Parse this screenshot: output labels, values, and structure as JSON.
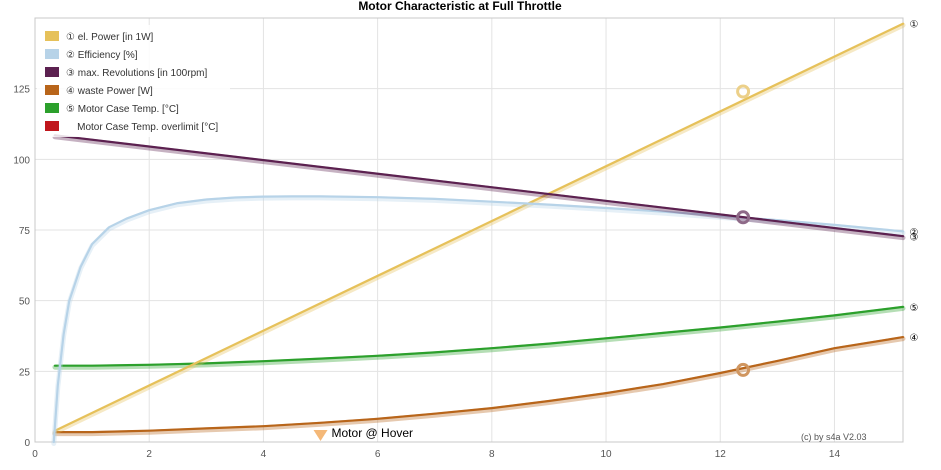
{
  "chart_data": {
    "type": "line",
    "title": "Motor Characteristic at Full Throttle",
    "xlabel": "",
    "ylabel": "",
    "xlim": [
      0,
      15.2
    ],
    "ylim": [
      0,
      150
    ],
    "x_ticks": [
      0,
      2,
      4,
      6,
      8,
      10,
      12,
      14
    ],
    "y_ticks": [
      0,
      25,
      50,
      75,
      100,
      125
    ],
    "grid": true,
    "legend_position": "top-left",
    "series": [
      {
        "name": "① el. Power [in 1W]",
        "marker": "①",
        "color": "#e6c15a",
        "x": [
          0.35,
          15.2
        ],
        "values": [
          4,
          148
        ]
      },
      {
        "name": "② Efficiency [%]",
        "marker": "②",
        "color": "#b7d3e8",
        "x": [
          0.33,
          0.4,
          0.5,
          0.6,
          0.8,
          1.0,
          1.3,
          1.6,
          2.0,
          2.5,
          3.0,
          3.5,
          4.0,
          4.5,
          5.0,
          6.0,
          7.0,
          8.0,
          9.0,
          10.0,
          11.0,
          12.0,
          13.0,
          14.0,
          15.2
        ],
        "values": [
          0,
          20,
          38,
          50,
          62,
          70,
          76,
          79,
          82,
          84.5,
          85.8,
          86.5,
          86.8,
          86.9,
          86.9,
          86.6,
          86,
          85,
          84,
          82.8,
          81.5,
          80,
          78.5,
          76.8,
          74.5
        ]
      },
      {
        "name": "③ max. Revolutions [in 100rpm]",
        "marker": "③",
        "color": "#5c2150",
        "x": [
          0.35,
          15.2
        ],
        "values": [
          108.5,
          72.8
        ]
      },
      {
        "name": "④ waste Power [W]",
        "marker": "④",
        "color": "#b8651a",
        "x": [
          0.35,
          1,
          2,
          3,
          4,
          5,
          6,
          7,
          8,
          9,
          10,
          11,
          12,
          13,
          14,
          15.2
        ],
        "values": [
          3.5,
          3.5,
          4,
          4.8,
          5.6,
          6.8,
          8.2,
          10,
          12,
          14.5,
          17.3,
          20.5,
          24.4,
          28.7,
          33.2,
          37.1
        ]
      },
      {
        "name": "⑤ Motor Case Temp. [°C]",
        "marker": "⑤",
        "color": "#2ca02c",
        "x": [
          0.35,
          1,
          2,
          3,
          4,
          5,
          6,
          7,
          8,
          9,
          10,
          11,
          12,
          13,
          14,
          15.2
        ],
        "values": [
          27,
          27,
          27.3,
          27.8,
          28.6,
          29.5,
          30.5,
          31.7,
          33.2,
          34.8,
          36.7,
          38.6,
          40.5,
          42.6,
          44.8,
          47.8
        ]
      },
      {
        "name": "Motor Case Temp. overlimit [°C]",
        "marker": "",
        "color": "#c0161c",
        "x": [],
        "values": []
      }
    ],
    "operating_point": {
      "x": 12.4,
      "values": [
        {
          "series": "el. Power",
          "y": 124,
          "color": "#ecd089"
        },
        {
          "series": "max. Revolutions",
          "y": 79.5,
          "color": "#8e6a88"
        },
        {
          "series": "waste Power",
          "y": 25.5,
          "color": "#d09660"
        }
      ]
    },
    "annotation": {
      "text": "Motor @ Hover",
      "x": 5,
      "y": 0,
      "color": "#f4b878"
    },
    "credit": "(c) by s4a  V2.03"
  }
}
